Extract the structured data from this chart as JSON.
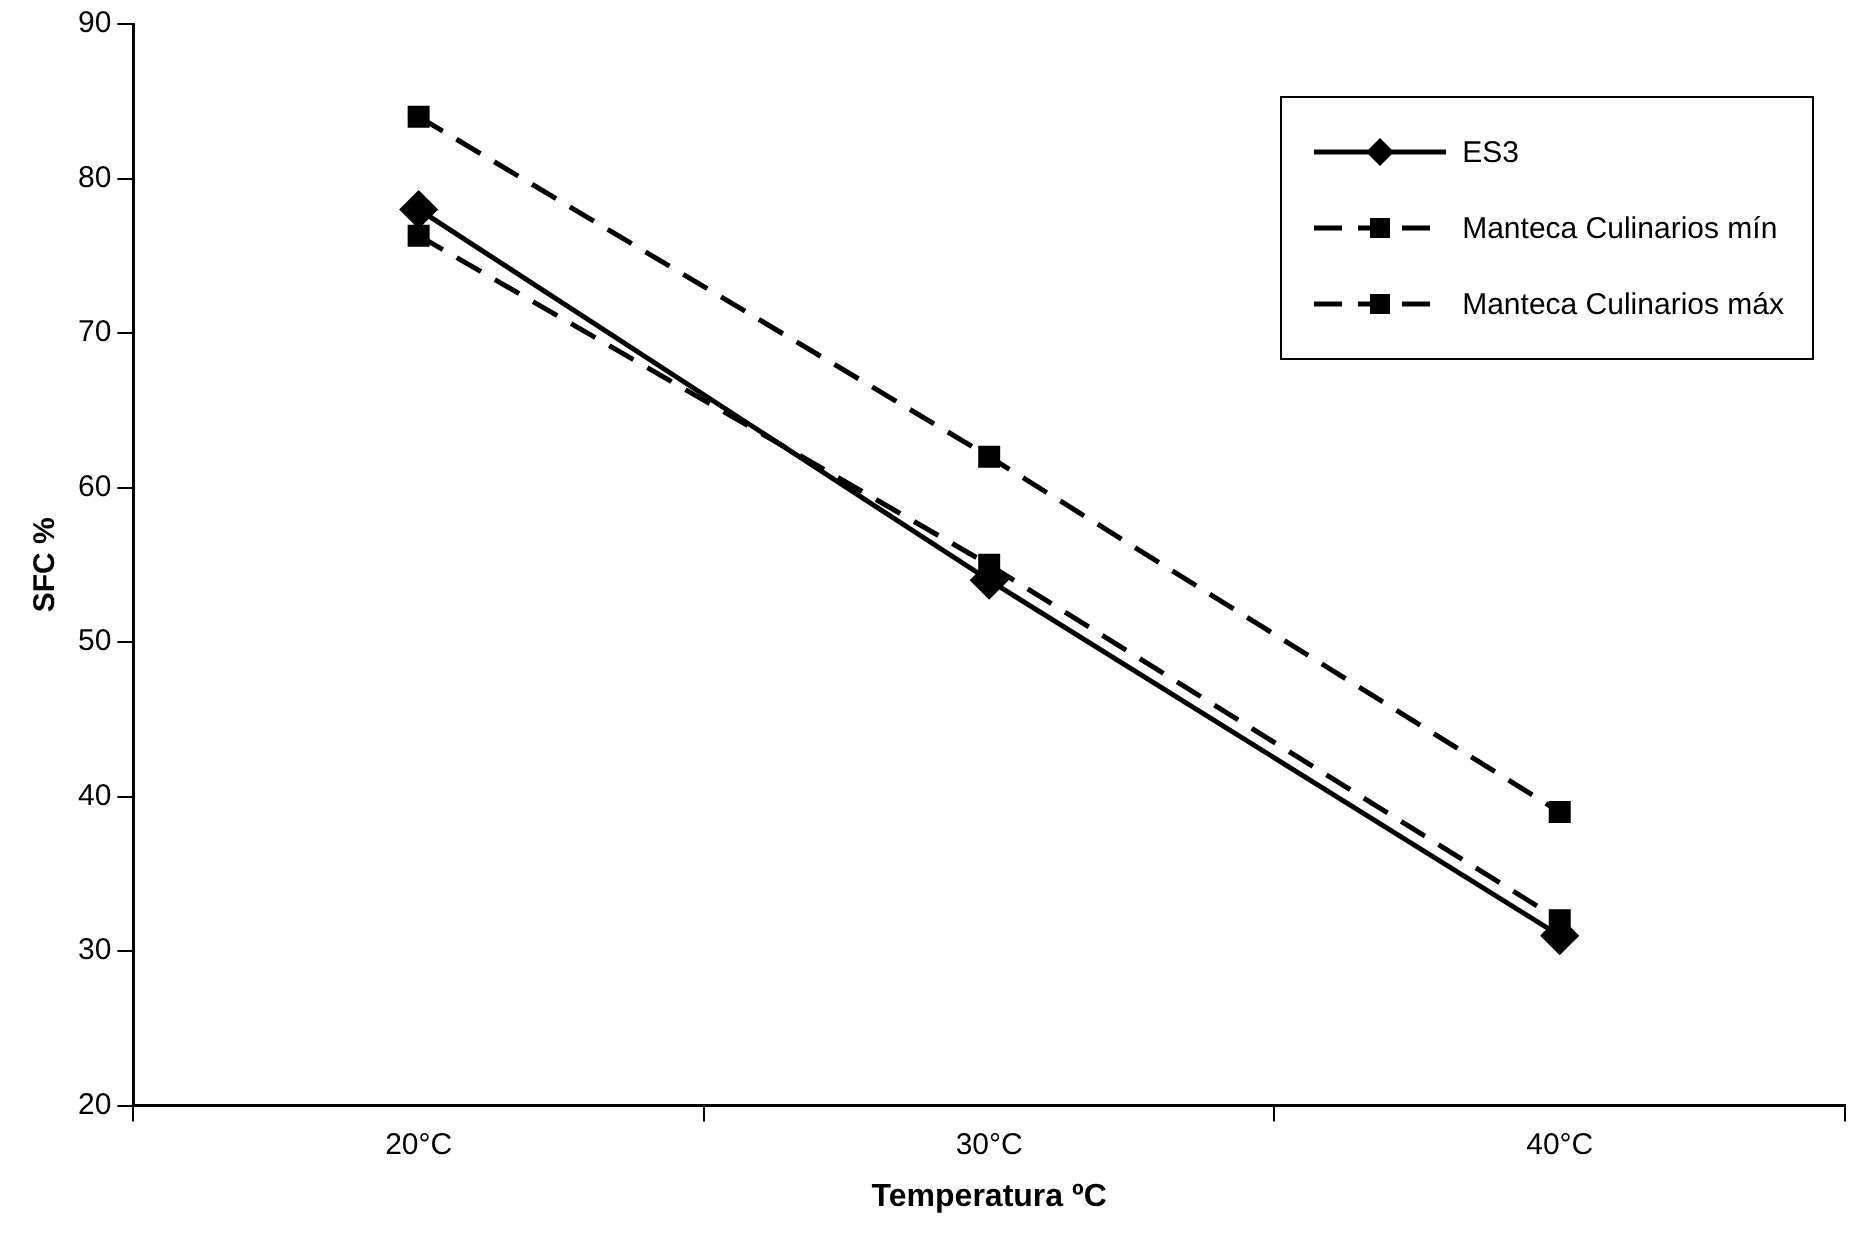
{
  "chart_data": {
    "type": "line",
    "xlabel": "Temperatura ºC",
    "ylabel": "SFC %",
    "categories": [
      "20°C",
      "30°C",
      "40°C"
    ],
    "series": [
      {
        "name": "ES3",
        "color": "#000000",
        "values": [
          78,
          54,
          31
        ],
        "marker": "diamond",
        "line_style": "solid"
      },
      {
        "name": "Manteca Culinarios mín",
        "color": "#000000",
        "values": [
          76.3,
          55,
          32
        ],
        "marker": "square",
        "line_style": "dashed"
      },
      {
        "name": "Manteca Culinarios máx",
        "color": "#000000",
        "values": [
          84,
          62,
          39
        ],
        "marker": "square",
        "line_style": "dashed"
      }
    ],
    "ylim": [
      20,
      90
    ],
    "yticks": [
      20,
      30,
      40,
      50,
      60,
      70,
      80,
      90
    ],
    "grid": false,
    "legend": "top right"
  }
}
